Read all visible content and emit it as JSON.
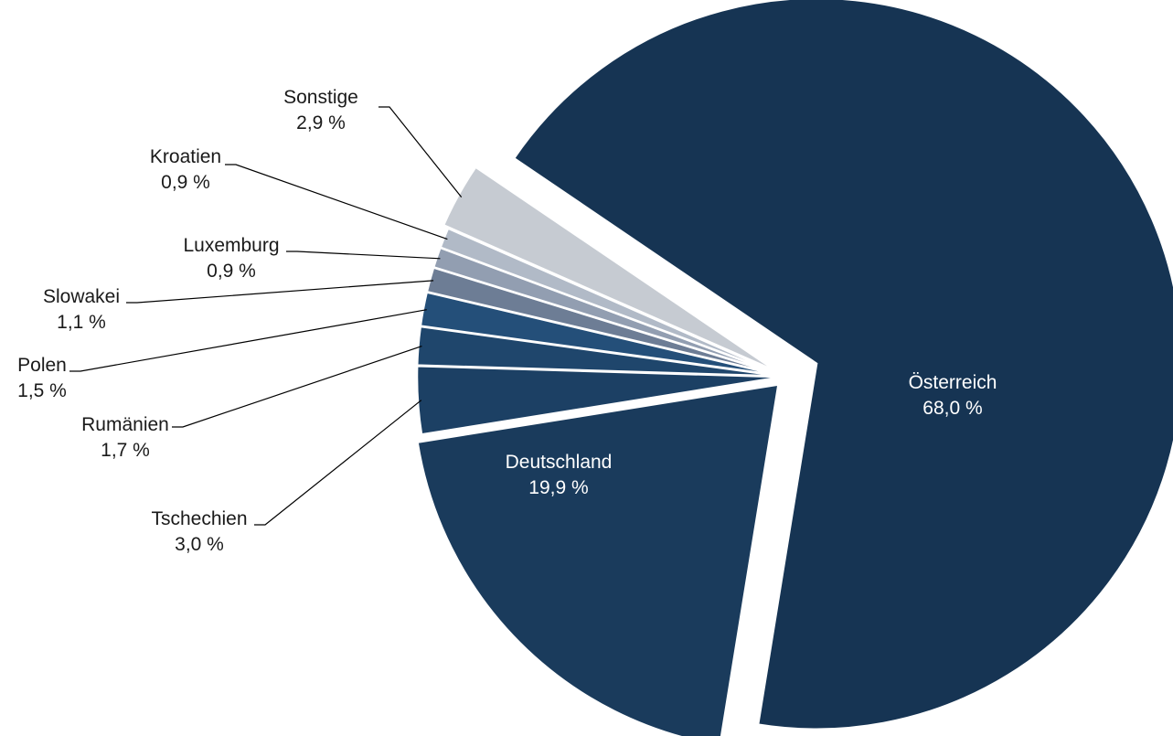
{
  "chart_data": {
    "type": "pie",
    "title": "",
    "slices": [
      {
        "label": "Österreich",
        "value_text": "68,0 %",
        "value": 68.0,
        "color": "#163453"
      },
      {
        "label": "Deutschland",
        "value_text": "19,9 %",
        "value": 19.9,
        "color": "#1a3b5c"
      },
      {
        "label": "Tschechien",
        "value_text": "3,0 %",
        "value": 3.0,
        "color": "#1c4064"
      },
      {
        "label": "Rumänien",
        "value_text": "1,7 %",
        "value": 1.7,
        "color": "#1f466c"
      },
      {
        "label": "Polen",
        "value_text": "1,5 %",
        "value": 1.5,
        "color": "#244f79"
      },
      {
        "label": "Slowakei",
        "value_text": "1,1 %",
        "value": 1.1,
        "color": "#6d7d95"
      },
      {
        "label": "Luxemburg",
        "value_text": "0,9 %",
        "value": 0.9,
        "color": "#929eb1"
      },
      {
        "label": "Kroatien",
        "value_text": "0,9 %",
        "value": 0.9,
        "color": "#b1bac7"
      },
      {
        "label": "Sonstige",
        "value_text": "2,9 %",
        "value": 2.9,
        "color": "#c6cbd2"
      }
    ],
    "legend": "none",
    "labels": "outside-with-leader-lines"
  }
}
